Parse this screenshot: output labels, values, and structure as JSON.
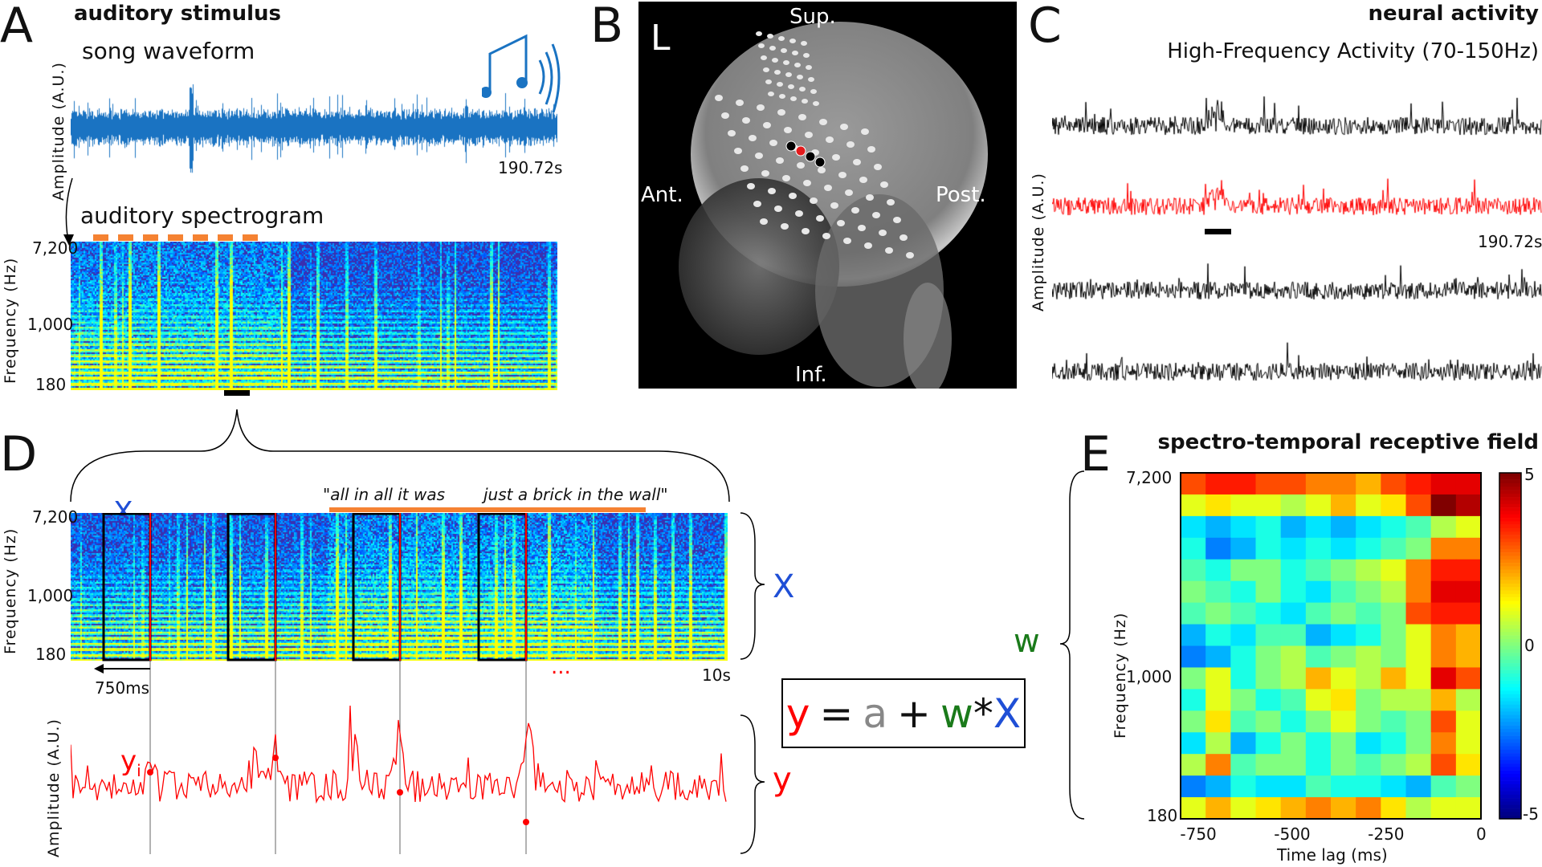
{
  "panels": {
    "A": {
      "letter": "A",
      "title": "auditory stimulus",
      "waveform_label": "song waveform",
      "amplitude_label": "Amplitude (A.U.)",
      "duration_label": "190.72s",
      "spectrogram_label": "auditory spectrogram",
      "freq_label": "Frequency (Hz)",
      "freq_ticks": [
        "7,200",
        "1,000",
        "180"
      ],
      "icon": "music-note-sound-icon",
      "waveform_color": "#1a73c2",
      "marker_color": "#f58232"
    },
    "B": {
      "letter": "B",
      "hemisphere": "L",
      "orientation": {
        "sup": "Sup.",
        "inf": "Inf.",
        "ant": "Ant.",
        "post": "Post."
      },
      "highlight_electrode_color": "#e31a1c"
    },
    "C": {
      "letter": "C",
      "title": "neural activity",
      "subtitle": "High-Frequency Activity (70-150Hz)",
      "amplitude_label": "Amplitude (A.U.)",
      "duration_label": "190.72s",
      "trace_colors": [
        "#000000",
        "#ff0000",
        "#000000",
        "#000000"
      ]
    },
    "D": {
      "letter": "D",
      "xi_label": "X",
      "xi_sub": "i",
      "lyric_1": "\"all in all it was",
      "lyric_2": "just a brick in the wall\"",
      "freq_label": "Frequency (Hz)",
      "freq_ticks": [
        "7,200",
        "1,000",
        "180"
      ],
      "window_label": "750ms",
      "end_label": "10s",
      "amplitude_label": "Amplitude (A.U.)",
      "yi_label": "y",
      "yi_sub": "i",
      "ellipsis": "...",
      "X_label": "X",
      "y_label": "y"
    },
    "equation": {
      "y": "y",
      "eq": "=",
      "a": "a",
      "plus": "+",
      "w": "w",
      "star": "*",
      "X": "X",
      "colors": {
        "y": "#ff0000",
        "a": "#888888",
        "w": "#1a7a1a",
        "X": "#1f4fd6"
      }
    },
    "E": {
      "letter": "E",
      "title": "spectro-temporal receptive field",
      "w_label": "w"
    }
  },
  "chart_data": {
    "type": "heatmap",
    "title": "spectro-temporal receptive field",
    "xlabel": "Time lag (ms)",
    "ylabel": "Frequency (Hz)",
    "xlim": [
      -800,
      0
    ],
    "x_ticks": [
      "-750",
      "-500",
      "-250",
      "0"
    ],
    "y_ticks": [
      "7,200",
      "1,000",
      "180"
    ],
    "colorbar": {
      "range": [
        -5,
        5
      ],
      "ticks": [
        "5",
        "0",
        "-5"
      ],
      "colormap": "jet"
    },
    "rows_top_to_bottom_high_to_low_freq": [
      [
        3,
        3.5,
        3.5,
        3,
        3,
        2.5,
        2.5,
        2,
        3,
        3.5,
        4,
        4
      ],
      [
        1,
        1.5,
        1,
        1,
        0.5,
        1,
        2,
        1,
        1.5,
        3,
        5,
        4.5
      ],
      [
        -1.5,
        -2,
        -1.5,
        -1,
        -2,
        -1.5,
        -2,
        -1.5,
        -1,
        -0.5,
        0.5,
        1
      ],
      [
        -1,
        -2.5,
        -2,
        -1,
        -1.5,
        -1,
        -1.5,
        -1,
        -0.5,
        0,
        2.5,
        2.5
      ],
      [
        -0.5,
        -1,
        0,
        0,
        -1,
        -0.5,
        0,
        0.5,
        1,
        2.5,
        3.5,
        3.5
      ],
      [
        0,
        -0.5,
        -1,
        0,
        -1,
        -1.5,
        -0.5,
        0,
        0.5,
        2.5,
        4,
        4
      ],
      [
        -0.5,
        0,
        -0.5,
        -1,
        -1.5,
        -0.5,
        0,
        -0.5,
        0,
        3,
        3.5,
        3.5
      ],
      [
        -2,
        -1,
        -1.5,
        -0.5,
        -0.5,
        -2,
        -1.5,
        -1,
        0,
        1,
        2.5,
        2
      ],
      [
        -2.5,
        -2,
        -1,
        0,
        0.5,
        -0.5,
        0,
        0.5,
        0,
        1,
        2.5,
        2
      ],
      [
        0,
        1,
        -1,
        0,
        0.5,
        2,
        1,
        0.5,
        2,
        1,
        4,
        3
      ],
      [
        -1,
        1,
        0,
        -1,
        -0.5,
        1,
        1.5,
        0,
        0.5,
        0.5,
        2,
        0.5
      ],
      [
        0,
        1.5,
        -0.5,
        0,
        -1,
        0,
        1,
        0,
        -0.5,
        0,
        3,
        1
      ],
      [
        -1.5,
        0.5,
        -2,
        -1,
        0,
        -1,
        0,
        -1.5,
        -1,
        0,
        2.5,
        1
      ],
      [
        0.5,
        2.5,
        -0.5,
        0,
        0,
        -1,
        0,
        -0.5,
        0,
        0.5,
        3,
        1.5
      ],
      [
        -2.5,
        -2,
        -1,
        -1.5,
        -1.5,
        -0.5,
        -1,
        -1,
        -1.5,
        -2,
        -0.5,
        0
      ],
      [
        1,
        2,
        1,
        1.5,
        2,
        2.5,
        2,
        2.5,
        1.5,
        0.5,
        1,
        1
      ]
    ]
  }
}
